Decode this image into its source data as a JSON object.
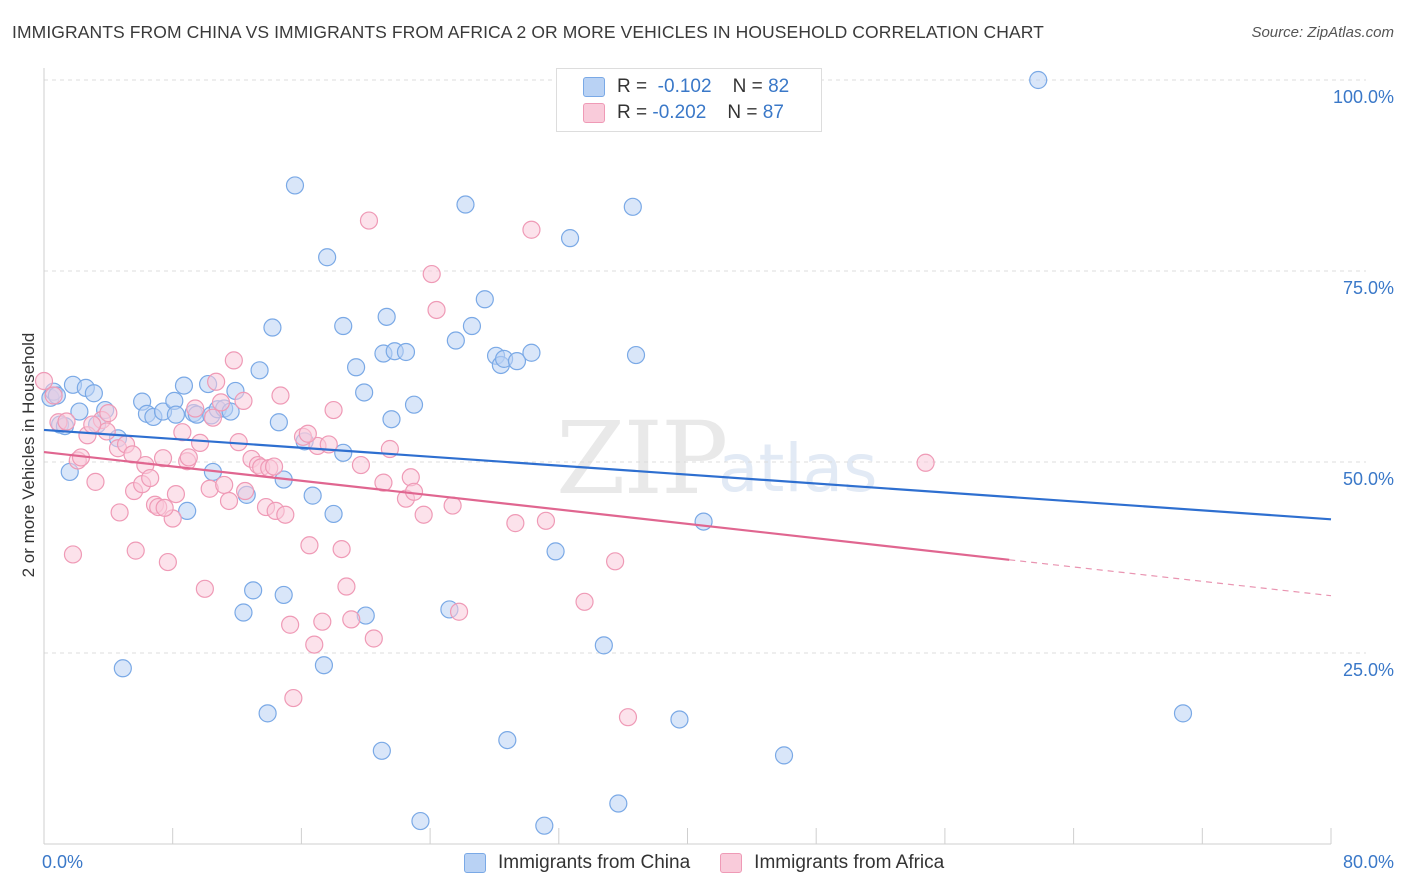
{
  "chart_data": {
    "type": "scatter",
    "title": "IMMIGRANTS FROM CHINA VS IMMIGRANTS FROM AFRICA 2 OR MORE VEHICLES IN HOUSEHOLD CORRELATION CHART",
    "source": "Source: ZipAtlas.com",
    "xlabel": "",
    "ylabel": "2 or more Vehicles in Household",
    "xlim": [
      0,
      80
    ],
    "ylim": [
      0,
      100
    ],
    "x_tick_labels": [
      "0.0%",
      "80.0%"
    ],
    "y_tick_labels": [
      {
        "value": 100,
        "label": "100.0%"
      },
      {
        "value": 75,
        "label": "75.0%"
      },
      {
        "value": 50,
        "label": "50.0%"
      },
      {
        "value": 25,
        "label": "25.0%"
      }
    ],
    "grid": true,
    "watermark": {
      "zip": "ZIP",
      "atlas": "atlas"
    },
    "legend_top": {
      "rows": [
        {
          "r_label": "R =",
          "r_value": "-0.102",
          "n_label": "N =",
          "n_value": "82"
        },
        {
          "r_label": "R =",
          "r_value": "-0.202",
          "n_label": "N =",
          "n_value": "87"
        }
      ]
    },
    "series": [
      {
        "name": "Immigrants from China",
        "color": "#7aa9e6",
        "fill": "#b9d2f4",
        "line_color": "#2e6fd0",
        "trend": {
          "x0": 0,
          "y0": 54.2,
          "x1": 80,
          "y1": 42.5
        },
        "points": [
          [
            0.4,
            58.4
          ],
          [
            0.6,
            59.2
          ],
          [
            0.8,
            58.7
          ],
          [
            1.0,
            54.9
          ],
          [
            1.3,
            54.7
          ],
          [
            1.6,
            48.7
          ],
          [
            1.8,
            60.1
          ],
          [
            2.2,
            56.6
          ],
          [
            2.6,
            59.7
          ],
          [
            3.1,
            59.0
          ],
          [
            3.3,
            54.9
          ],
          [
            3.8,
            56.8
          ],
          [
            4.6,
            53.1
          ],
          [
            6.1,
            57.9
          ],
          [
            6.4,
            56.3
          ],
          [
            6.8,
            55.9
          ],
          [
            7.4,
            56.6
          ],
          [
            8.1,
            58.0
          ],
          [
            8.2,
            56.2
          ],
          [
            8.7,
            60.0
          ],
          [
            8.9,
            43.6
          ],
          [
            9.3,
            56.4
          ],
          [
            9.5,
            56.2
          ],
          [
            10.2,
            60.2
          ],
          [
            10.4,
            56.1
          ],
          [
            10.5,
            48.7
          ],
          [
            10.8,
            56.9
          ],
          [
            11.2,
            57.0
          ],
          [
            11.6,
            56.6
          ],
          [
            11.9,
            59.3
          ],
          [
            12.6,
            45.7
          ],
          [
            13.0,
            33.2
          ],
          [
            13.4,
            62.0
          ],
          [
            14.2,
            67.6
          ],
          [
            14.6,
            55.2
          ],
          [
            14.9,
            32.6
          ],
          [
            15.6,
            86.2
          ],
          [
            16.2,
            52.7
          ],
          [
            16.7,
            45.6
          ],
          [
            17.6,
            76.8
          ],
          [
            18.0,
            43.2
          ],
          [
            18.6,
            67.8
          ],
          [
            19.4,
            62.4
          ],
          [
            19.9,
            59.1
          ],
          [
            20.0,
            29.9
          ],
          [
            21.1,
            64.2
          ],
          [
            21.3,
            69.0
          ],
          [
            21.6,
            55.6
          ],
          [
            21.8,
            64.5
          ],
          [
            22.5,
            64.4
          ],
          [
            23.0,
            57.5
          ],
          [
            23.4,
            3.0
          ],
          [
            25.6,
            65.9
          ],
          [
            26.2,
            83.7
          ],
          [
            26.6,
            67.8
          ],
          [
            27.4,
            71.3
          ],
          [
            28.1,
            63.9
          ],
          [
            28.4,
            62.7
          ],
          [
            28.6,
            63.5
          ],
          [
            29.4,
            63.2
          ],
          [
            30.3,
            64.3
          ],
          [
            31.8,
            38.3
          ],
          [
            32.7,
            79.3
          ],
          [
            34.8,
            26.0
          ],
          [
            35.7,
            5.3
          ],
          [
            36.6,
            83.4
          ],
          [
            36.8,
            64.0
          ],
          [
            39.5,
            16.3
          ],
          [
            41.0,
            42.2
          ],
          [
            46.0,
            11.6
          ],
          [
            61.8,
            100.0
          ],
          [
            70.8,
            17.1
          ],
          [
            4.9,
            23.0
          ],
          [
            12.4,
            30.3
          ],
          [
            13.9,
            17.1
          ],
          [
            17.4,
            23.4
          ],
          [
            21.0,
            12.2
          ],
          [
            28.8,
            13.6
          ],
          [
            31.1,
            2.4
          ],
          [
            18.6,
            51.2
          ],
          [
            14.9,
            47.7
          ],
          [
            25.2,
            30.7
          ]
        ]
      },
      {
        "name": "Immigrants from Africa",
        "color": "#ef9ab6",
        "fill": "#f9cbda",
        "line_color": "#e06690",
        "trend": {
          "x0": 0,
          "y0": 51.3,
          "x1": 60,
          "y1": 37.2
        },
        "trend_dash": {
          "x0": 60,
          "y0": 37.2,
          "x1": 80,
          "y1": 32.5
        },
        "points": [
          [
            0.0,
            60.6
          ],
          [
            0.6,
            58.7
          ],
          [
            0.9,
            55.2
          ],
          [
            1.4,
            55.3
          ],
          [
            1.8,
            37.9
          ],
          [
            2.1,
            50.2
          ],
          [
            2.3,
            50.6
          ],
          [
            2.7,
            53.5
          ],
          [
            3.2,
            47.4
          ],
          [
            3.6,
            55.5
          ],
          [
            3.9,
            54.0
          ],
          [
            4.6,
            51.8
          ],
          [
            4.7,
            43.4
          ],
          [
            5.1,
            52.3
          ],
          [
            5.5,
            51.0
          ],
          [
            5.6,
            46.2
          ],
          [
            5.7,
            38.4
          ],
          [
            6.1,
            47.1
          ],
          [
            6.3,
            49.6
          ],
          [
            6.6,
            47.9
          ],
          [
            6.9,
            44.4
          ],
          [
            7.1,
            44.1
          ],
          [
            7.4,
            50.5
          ],
          [
            7.7,
            36.9
          ],
          [
            8.0,
            42.6
          ],
          [
            8.2,
            45.8
          ],
          [
            8.6,
            53.9
          ],
          [
            8.9,
            50.1
          ],
          [
            9.0,
            50.6
          ],
          [
            9.4,
            57.0
          ],
          [
            9.7,
            52.5
          ],
          [
            10.0,
            33.4
          ],
          [
            10.3,
            46.5
          ],
          [
            10.5,
            55.8
          ],
          [
            10.7,
            60.5
          ],
          [
            11.2,
            47.0
          ],
          [
            11.5,
            44.9
          ],
          [
            11.8,
            63.3
          ],
          [
            12.1,
            52.6
          ],
          [
            12.4,
            58.0
          ],
          [
            12.5,
            46.2
          ],
          [
            12.9,
            50.4
          ],
          [
            13.3,
            49.6
          ],
          [
            13.5,
            49.3
          ],
          [
            13.8,
            44.1
          ],
          [
            14.0,
            49.2
          ],
          [
            14.4,
            43.6
          ],
          [
            14.7,
            58.7
          ],
          [
            15.0,
            43.1
          ],
          [
            15.3,
            28.7
          ],
          [
            15.5,
            19.1
          ],
          [
            16.1,
            53.3
          ],
          [
            16.5,
            39.1
          ],
          [
            16.8,
            26.1
          ],
          [
            17.0,
            52.1
          ],
          [
            17.3,
            29.1
          ],
          [
            17.7,
            52.3
          ],
          [
            18.0,
            56.8
          ],
          [
            18.5,
            38.6
          ],
          [
            18.8,
            33.7
          ],
          [
            19.1,
            29.4
          ],
          [
            19.7,
            49.6
          ],
          [
            20.2,
            81.6
          ],
          [
            20.5,
            26.9
          ],
          [
            21.1,
            47.3
          ],
          [
            21.5,
            51.7
          ],
          [
            22.5,
            45.2
          ],
          [
            22.8,
            48.0
          ],
          [
            23.0,
            46.1
          ],
          [
            23.6,
            43.1
          ],
          [
            24.1,
            74.6
          ],
          [
            24.4,
            69.9
          ],
          [
            25.4,
            44.3
          ],
          [
            25.8,
            30.4
          ],
          [
            29.3,
            42.0
          ],
          [
            30.3,
            80.4
          ],
          [
            31.2,
            42.3
          ],
          [
            33.6,
            31.7
          ],
          [
            35.5,
            37.0
          ],
          [
            36.3,
            16.6
          ],
          [
            54.8,
            49.9
          ],
          [
            3.0,
            54.9
          ],
          [
            4.0,
            56.4
          ],
          [
            7.5,
            44.0
          ],
          [
            11.0,
            57.8
          ],
          [
            14.3,
            49.4
          ],
          [
            16.4,
            53.7
          ]
        ]
      }
    ]
  }
}
